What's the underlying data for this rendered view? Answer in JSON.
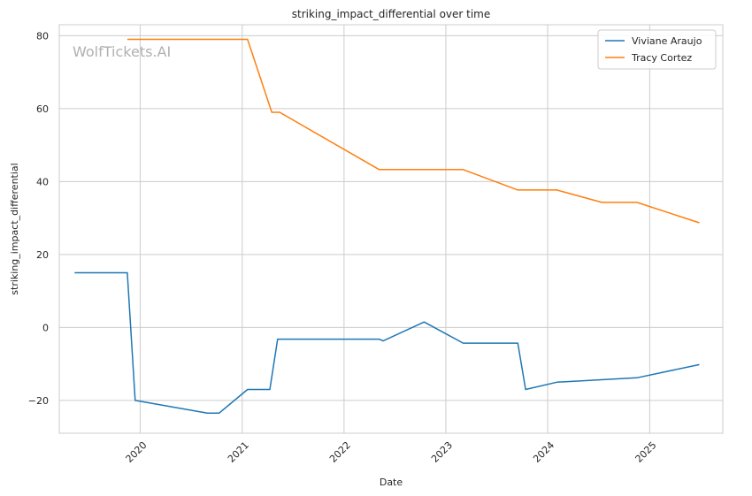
{
  "chart_data": {
    "type": "line",
    "title": "striking_impact_differential over time",
    "xlabel": "Date",
    "ylabel": "striking_impact_differential",
    "watermark": "WolfTickets.AI",
    "xlim": [
      "2019-03-17",
      "2025-09-20"
    ],
    "ylim": [
      -29.0,
      83.0
    ],
    "x_ticks": [
      "2020-01-01",
      "2021-01-01",
      "2022-01-01",
      "2023-01-01",
      "2024-01-01",
      "2025-01-01"
    ],
    "x_tick_labels": [
      "2020",
      "2021",
      "2022",
      "2023",
      "2024",
      "2025"
    ],
    "y_ticks": [
      -20,
      0,
      20,
      40,
      60,
      80
    ],
    "y_tick_labels": [
      "−20",
      "0",
      "20",
      "40",
      "60",
      "80"
    ],
    "grid": true,
    "legend_position": "top-right",
    "series": [
      {
        "name": "Viviane Araujo",
        "color": "#1f77b4",
        "points": [
          [
            "2019-05-11",
            15
          ],
          [
            "2019-11-16",
            15
          ],
          [
            "2019-12-14",
            -20
          ],
          [
            "2020-08-29",
            -23.5
          ],
          [
            "2020-10-10",
            -23.5
          ],
          [
            "2021-01-20",
            -17
          ],
          [
            "2021-04-10",
            -17
          ],
          [
            "2021-05-08",
            -3.2
          ],
          [
            "2022-05-07",
            -3.2
          ],
          [
            "2022-05-21",
            -3.7
          ],
          [
            "2022-10-15",
            1.5
          ],
          [
            "2023-03-04",
            -4.3
          ],
          [
            "2023-09-16",
            -4.3
          ],
          [
            "2023-10-14",
            -17
          ],
          [
            "2024-02-03",
            -15
          ],
          [
            "2024-11-16",
            -13.8
          ],
          [
            "2025-06-28",
            -10.2
          ]
        ]
      },
      {
        "name": "Tracy Cortez",
        "color": "#ff7f0e",
        "points": [
          [
            "2019-11-16",
            79
          ],
          [
            "2021-01-20",
            79
          ],
          [
            "2021-04-17",
            59
          ],
          [
            "2021-05-15",
            59
          ],
          [
            "2022-05-07",
            43.3
          ],
          [
            "2023-03-04",
            43.3
          ],
          [
            "2023-09-16",
            37.7
          ],
          [
            "2024-02-03",
            37.7
          ],
          [
            "2024-07-13",
            34.3
          ],
          [
            "2024-11-16",
            34.3
          ],
          [
            "2025-06-28",
            28.7
          ]
        ]
      }
    ]
  }
}
